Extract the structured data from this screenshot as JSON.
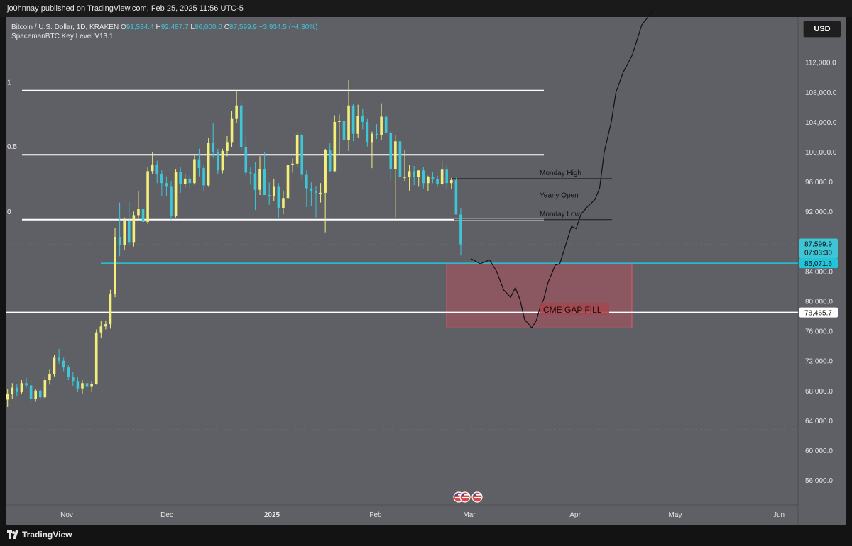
{
  "header": {
    "published": "jo0hnnay published on TradingView.com, Feb 25, 2025 11:56 UTC-5"
  },
  "legend": {
    "symbol": "Bitcoin / U.S. Dollar, 1D, KRAKEN",
    "open_label": "O",
    "open": "91,534.4",
    "high_label": "H",
    "high": "92,487.7",
    "low_label": "L",
    "low": "86,000.0",
    "close_label": "C",
    "close": "87,599.9",
    "change": "−3,934.5 (−4.30%)",
    "indicator": "SpacemanBTC Key Level V13.1"
  },
  "currency_button": "USD",
  "footer": {
    "brand": "TradingView"
  },
  "colors": {
    "background": "#5f5f66",
    "up_candle": "#f2f07a",
    "down_candle": "#3ec6d6",
    "level_line": "#ffffff",
    "cyan_level": "#22c4da",
    "gap_fill": "#c2505a",
    "projection": "#111111"
  },
  "chart_data": {
    "type": "candlestick",
    "x_axis": {
      "tick_labels": [
        "Nov",
        "Dec",
        "2025",
        "Feb",
        "Mar",
        "Apr",
        "May",
        "Jun"
      ]
    },
    "y_axis": {
      "range": [
        52000,
        118000
      ],
      "tick_labels": [
        "112,000.0",
        "108,000.0",
        "104,000.0",
        "100,000.0",
        "96,000.0",
        "92,000.0",
        "88,000.0",
        "84,000.0",
        "80,000.0",
        "76,000.0",
        "72,000.0",
        "68,000.0",
        "64,000.0",
        "60,000.0",
        "56,000.0"
      ]
    },
    "price_labels": [
      {
        "text": "87,599.9",
        "sub": "07:03:30",
        "value": 87599.9,
        "style": "current"
      },
      {
        "text": "85,071.6",
        "value": 85071.6,
        "style": "cyan"
      },
      {
        "text": "78,465.7",
        "value": 78465.7,
        "style": "white"
      }
    ],
    "fib_levels": [
      {
        "label": "1",
        "value": 108200
      },
      {
        "label": "0.5",
        "value": 99600
      },
      {
        "label": "0",
        "value": 90900
      }
    ],
    "key_levels": [
      {
        "label": "Monday High",
        "value": 96400
      },
      {
        "label": "Yearly Open",
        "value": 93400
      },
      {
        "label": "Monday Low",
        "value": 90900
      }
    ],
    "horizontal_lines": [
      {
        "value": 85071.6,
        "color": "cyan"
      },
      {
        "value": 78465.7,
        "color": "white"
      }
    ],
    "gap_fill_zone": {
      "label": "CME GAP FILL",
      "top": 85000,
      "bottom": 76400
    },
    "candles": [
      [
        66800,
        68200,
        65800,
        67600
      ],
      [
        67600,
        69000,
        66900,
        68400
      ],
      [
        68400,
        68900,
        67200,
        67800
      ],
      [
        67800,
        69400,
        67500,
        69000
      ],
      [
        69000,
        69700,
        68400,
        68700
      ],
      [
        68700,
        69200,
        66200,
        66900
      ],
      [
        66900,
        68200,
        66500,
        68000
      ],
      [
        68000,
        68300,
        66800,
        67100
      ],
      [
        67100,
        69800,
        66900,
        69400
      ],
      [
        69400,
        70800,
        68800,
        70200
      ],
      [
        70200,
        72800,
        69900,
        72400
      ],
      [
        72400,
        73600,
        71600,
        72000
      ],
      [
        72000,
        72400,
        70600,
        71100
      ],
      [
        71100,
        71400,
        69400,
        69800
      ],
      [
        69800,
        70500,
        68600,
        69200
      ],
      [
        69200,
        69800,
        67800,
        68300
      ],
      [
        68300,
        69400,
        67600,
        69000
      ],
      [
        69000,
        70200,
        67900,
        68500
      ],
      [
        68500,
        69200,
        67800,
        68900
      ],
      [
        68900,
        76200,
        68800,
        75800
      ],
      [
        75800,
        77300,
        75000,
        76600
      ],
      [
        76600,
        77400,
        76200,
        76900
      ],
      [
        76900,
        81500,
        76300,
        81000
      ],
      [
        81000,
        89800,
        80500,
        88600
      ],
      [
        88600,
        93200,
        86000,
        87500
      ],
      [
        87500,
        91200,
        86800,
        90700
      ],
      [
        90700,
        93300,
        87500,
        87900
      ],
      [
        87900,
        92000,
        87300,
        91500
      ],
      [
        91500,
        94700,
        90900,
        92300
      ],
      [
        92300,
        94800,
        89900,
        90600
      ],
      [
        90600,
        97900,
        90300,
        97400
      ],
      [
        97400,
        99900,
        97000,
        98300
      ],
      [
        98300,
        98800,
        95800,
        97000
      ],
      [
        97000,
        97500,
        94100,
        95800
      ],
      [
        95800,
        96700,
        94000,
        95300
      ],
      [
        95300,
        96100,
        90900,
        91400
      ],
      [
        91400,
        97700,
        91200,
        97300
      ],
      [
        97300,
        98000,
        94500,
        95700
      ],
      [
        95700,
        97000,
        95200,
        96400
      ],
      [
        96400,
        96900,
        95100,
        95800
      ],
      [
        95800,
        99500,
        95600,
        99000
      ],
      [
        99000,
        100400,
        96700,
        97800
      ],
      [
        97800,
        98300,
        94700,
        95500
      ],
      [
        95500,
        101800,
        95300,
        101200
      ],
      [
        101200,
        103900,
        99200,
        100000
      ],
      [
        100000,
        100400,
        97000,
        97500
      ],
      [
        97500,
        100400,
        97100,
        100100
      ],
      [
        100100,
        102100,
        99400,
        101300
      ],
      [
        101300,
        105500,
        100600,
        104400
      ],
      [
        104400,
        108300,
        103800,
        106200
      ],
      [
        106200,
        106800,
        100100,
        100600
      ],
      [
        100600,
        102000,
        96800,
        97200
      ],
      [
        97200,
        98000,
        95600,
        97100
      ],
      [
        97100,
        98600,
        92200,
        94900
      ],
      [
        94900,
        99400,
        94200,
        97700
      ],
      [
        97700,
        99900,
        94400,
        94200
      ],
      [
        94200,
        95900,
        92900,
        94100
      ],
      [
        94100,
        96400,
        93400,
        95300
      ],
      [
        95300,
        95800,
        91200,
        92500
      ],
      [
        92500,
        94800,
        91600,
        93800
      ],
      [
        93800,
        98700,
        93400,
        98200
      ],
      [
        98200,
        99100,
        97200,
        98400
      ],
      [
        98400,
        102600,
        97900,
        102200
      ],
      [
        102200,
        102500,
        96200,
        96900
      ],
      [
        96900,
        97500,
        92600,
        95100
      ],
      [
        95100,
        95900,
        92700,
        94700
      ],
      [
        94700,
        95400,
        91200,
        94500
      ],
      [
        94500,
        95800,
        93200,
        94500
      ],
      [
        94500,
        100400,
        89200,
        100200
      ],
      [
        100200,
        101200,
        97300,
        97400
      ],
      [
        97400,
        104900,
        97300,
        104000
      ],
      [
        104000,
        105000,
        99700,
        104100
      ],
      [
        104100,
        106700,
        101300,
        101600
      ],
      [
        101600,
        109600,
        100100,
        106200
      ],
      [
        106200,
        106400,
        101400,
        102400
      ],
      [
        102400,
        106300,
        101800,
        104800
      ],
      [
        104800,
        105700,
        103000,
        104000
      ],
      [
        104000,
        104400,
        100700,
        101300
      ],
      [
        101300,
        102700,
        97800,
        102400
      ],
      [
        102400,
        103700,
        101700,
        102200
      ],
      [
        102200,
        106500,
        101600,
        104700
      ],
      [
        104700,
        105000,
        102500,
        102500
      ],
      [
        102500,
        102700,
        96200,
        97700
      ],
      [
        97700,
        102200,
        91200,
        101400
      ],
      [
        101400,
        101600,
        96200,
        96600
      ],
      [
        96600,
        100200,
        96100,
        96600
      ],
      [
        96600,
        98200,
        94800,
        97400
      ],
      [
        97400,
        98100,
        95500,
        96600
      ],
      [
        96600,
        97500,
        95300,
        97500
      ],
      [
        97500,
        98000,
        95100,
        95800
      ],
      [
        95800,
        96800,
        94700,
        96600
      ],
      [
        96600,
        97300,
        95800,
        96300
      ],
      [
        96300,
        96800,
        95300,
        95700
      ],
      [
        95700,
        98800,
        95400,
        97600
      ],
      [
        97600,
        98300,
        95000,
        95800
      ],
      [
        95800,
        96500,
        95000,
        96200
      ],
      [
        96200,
        96500,
        91800,
        91600
      ],
      [
        91600,
        92500,
        86100,
        87600
      ]
    ],
    "projection_path": [
      [
        0,
        85700
      ],
      [
        4,
        85000
      ],
      [
        8,
        85500
      ],
      [
        11,
        84000
      ],
      [
        14,
        81500
      ],
      [
        17,
        80500
      ],
      [
        19,
        81800
      ],
      [
        21,
        80200
      ],
      [
        23,
        77500
      ],
      [
        25,
        76800
      ],
      [
        26,
        76400
      ],
      [
        28,
        77400
      ],
      [
        29,
        78500
      ],
      [
        30,
        79500
      ],
      [
        31,
        80100
      ],
      [
        33,
        82500
      ],
      [
        35,
        84000
      ],
      [
        36,
        84800
      ],
      [
        38,
        85000
      ],
      [
        41,
        88000
      ],
      [
        43,
        90000
      ],
      [
        45,
        89700
      ],
      [
        47,
        91600
      ],
      [
        50,
        92700
      ],
      [
        53,
        93600
      ],
      [
        55,
        95100
      ],
      [
        57,
        100000
      ],
      [
        60,
        104000
      ],
      [
        62,
        108000
      ],
      [
        65,
        110600
      ],
      [
        69,
        113000
      ],
      [
        73,
        117000
      ],
      [
        78,
        119000
      ]
    ]
  }
}
